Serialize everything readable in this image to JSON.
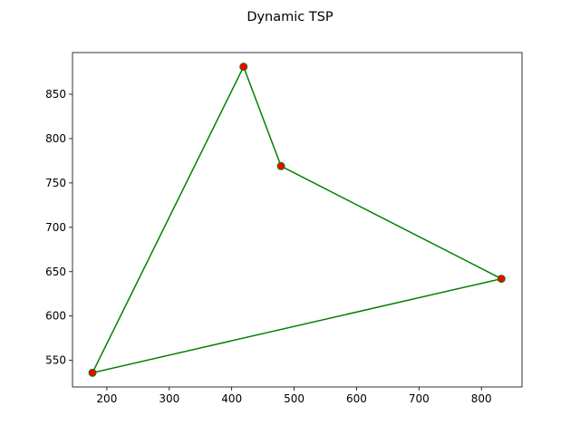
{
  "chart_data": {
    "type": "line",
    "title": "Dynamic TSP",
    "xlabel": "",
    "ylabel": "",
    "xlim": [
      145,
      865
    ],
    "ylim": [
      520,
      897
    ],
    "xticks": [
      200,
      300,
      400,
      500,
      600,
      700,
      800
    ],
    "yticks": [
      550,
      600,
      650,
      700,
      750,
      800,
      850
    ],
    "grid": false,
    "legend": null,
    "points": [
      {
        "x": 419,
        "y": 881
      },
      {
        "x": 479,
        "y": 769
      },
      {
        "x": 832,
        "y": 642
      },
      {
        "x": 177,
        "y": 536
      }
    ],
    "route": [
      0,
      1,
      2,
      3,
      0
    ],
    "route_color": "#008000",
    "point_color": "#ff0000",
    "point_edge_color": "#008000"
  }
}
